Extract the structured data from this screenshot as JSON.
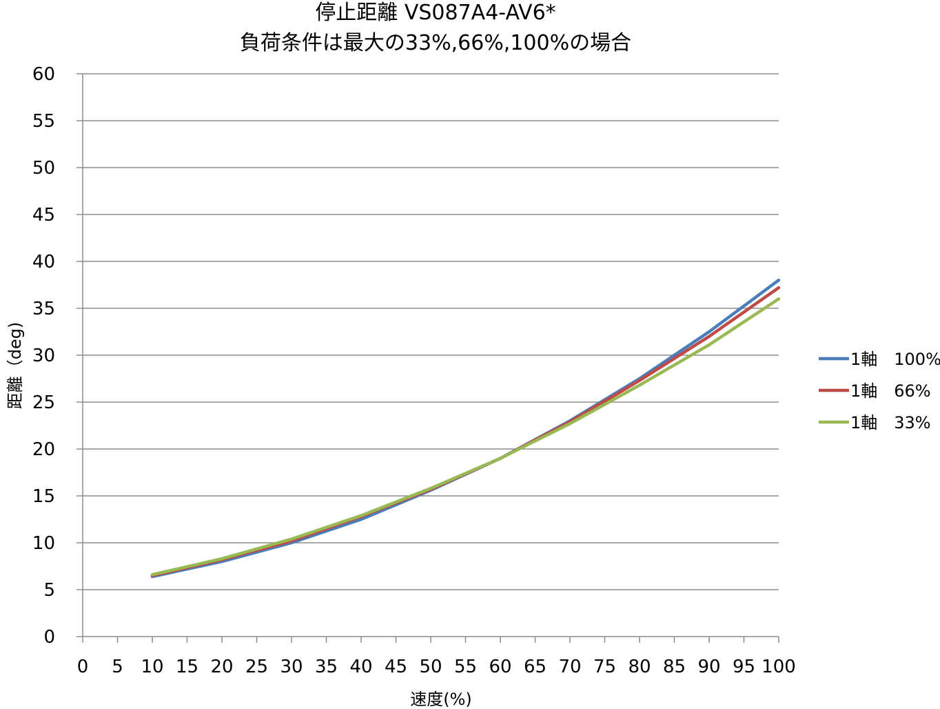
{
  "chart_data": {
    "type": "line",
    "title": [
      "停止距離 VS087A4-AV6*",
      "負荷条件は最大の33%,66%,100%の場合"
    ],
    "xlabel": "速度(%)",
    "ylabel": "距離（deg)",
    "xlim": [
      0,
      100
    ],
    "ylim": [
      0,
      60
    ],
    "x_ticks": [
      0,
      5,
      10,
      15,
      20,
      25,
      30,
      35,
      40,
      45,
      50,
      55,
      60,
      65,
      70,
      75,
      80,
      85,
      90,
      95,
      100
    ],
    "y_ticks": [
      0,
      5,
      10,
      15,
      20,
      25,
      30,
      35,
      40,
      45,
      50,
      55,
      60
    ],
    "grid": "horizontal",
    "legend_position": "right",
    "x": [
      10,
      20,
      30,
      40,
      50,
      60,
      70,
      80,
      90,
      100
    ],
    "series": [
      {
        "name": "1軸　100%",
        "color": "#4a7ebb",
        "values": [
          6.4,
          8.0,
          10.0,
          12.5,
          15.6,
          19.0,
          23.0,
          27.5,
          32.5,
          38.0
        ]
      },
      {
        "name": "1軸　66%",
        "color": "#be4b48",
        "values": [
          6.5,
          8.2,
          10.2,
          12.8,
          15.7,
          19.0,
          22.9,
          27.3,
          32.0,
          37.2
        ]
      },
      {
        "name": "1軸　33%",
        "color": "#98b954",
        "values": [
          6.6,
          8.3,
          10.4,
          12.9,
          15.8,
          19.0,
          22.7,
          26.8,
          31.1,
          36.0
        ]
      }
    ]
  }
}
